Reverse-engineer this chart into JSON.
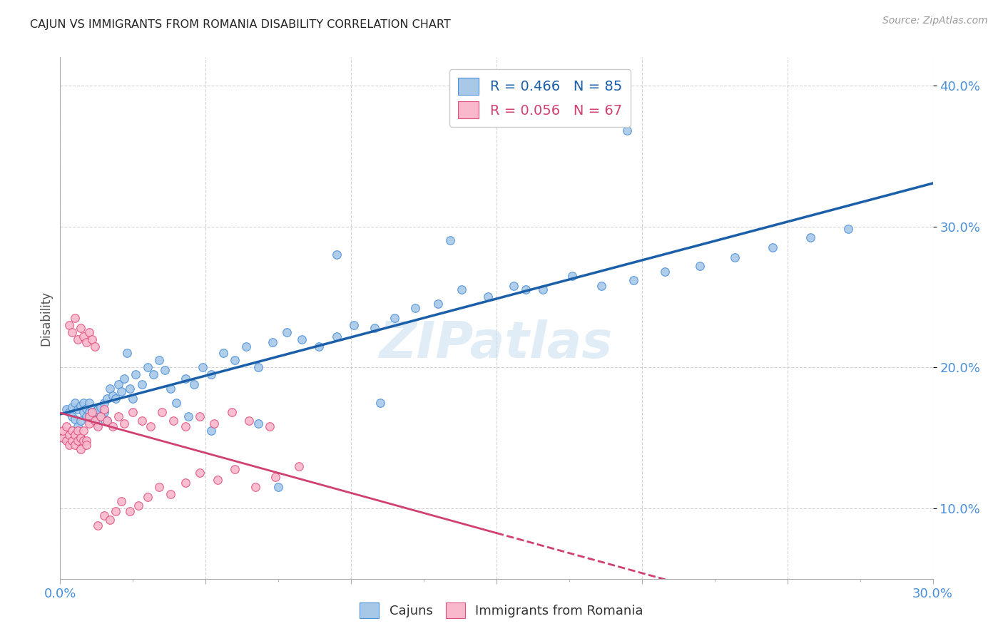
{
  "title": "CAJUN VS IMMIGRANTS FROM ROMANIA DISABILITY CORRELATION CHART",
  "source": "Source: ZipAtlas.com",
  "ylabel": "Disability",
  "xlim": [
    0.0,
    0.3
  ],
  "ylim": [
    0.05,
    0.42
  ],
  "y_ticks": [
    0.1,
    0.2,
    0.3,
    0.4
  ],
  "y_tick_labels": [
    "10.0%",
    "20.0%",
    "30.0%",
    "40.0%"
  ],
  "x_ticks": [
    0.0,
    0.05,
    0.1,
    0.15,
    0.2,
    0.25,
    0.3
  ],
  "x_tick_labels": [
    "0.0%",
    "",
    "",
    "",
    "",
    "",
    "30.0%"
  ],
  "background_color": "#ffffff",
  "grid_color": "#c8c8c8",
  "cajun_fill_color": "#a8c8e8",
  "cajun_edge_color": "#4a90d9",
  "romania_fill_color": "#f9b8cc",
  "romania_edge_color": "#e05080",
  "cajun_line_color": "#1a5fa8",
  "romania_line_color": "#d04070",
  "cajun_R": 0.466,
  "cajun_N": 85,
  "romania_R": 0.056,
  "romania_N": 67,
  "legend_label_cajun": "Cajuns",
  "legend_label_romania": "Immigrants from Romania",
  "watermark": "ZIPatlas",
  "cajun_x": [
    0.002,
    0.003,
    0.004,
    0.004,
    0.005,
    0.005,
    0.006,
    0.006,
    0.007,
    0.007,
    0.008,
    0.008,
    0.009,
    0.009,
    0.01,
    0.01,
    0.011,
    0.011,
    0.012,
    0.012,
    0.013,
    0.013,
    0.014,
    0.014,
    0.015,
    0.015,
    0.016,
    0.016,
    0.017,
    0.018,
    0.019,
    0.02,
    0.021,
    0.022,
    0.023,
    0.024,
    0.025,
    0.026,
    0.028,
    0.03,
    0.032,
    0.034,
    0.036,
    0.038,
    0.04,
    0.043,
    0.046,
    0.049,
    0.052,
    0.056,
    0.06,
    0.064,
    0.068,
    0.073,
    0.078,
    0.083,
    0.089,
    0.095,
    0.101,
    0.108,
    0.115,
    0.122,
    0.13,
    0.138,
    0.147,
    0.156,
    0.166,
    0.176,
    0.186,
    0.197,
    0.208,
    0.22,
    0.232,
    0.245,
    0.258,
    0.271,
    0.134,
    0.095,
    0.16,
    0.044,
    0.052,
    0.068,
    0.075,
    0.11,
    0.195
  ],
  "cajun_y": [
    0.17,
    0.168,
    0.172,
    0.165,
    0.175,
    0.163,
    0.17,
    0.158,
    0.173,
    0.162,
    0.168,
    0.175,
    0.165,
    0.171,
    0.168,
    0.175,
    0.163,
    0.17,
    0.165,
    0.168,
    0.17,
    0.16,
    0.165,
    0.172,
    0.168,
    0.175,
    0.162,
    0.178,
    0.185,
    0.18,
    0.178,
    0.188,
    0.183,
    0.192,
    0.21,
    0.185,
    0.178,
    0.195,
    0.188,
    0.2,
    0.195,
    0.205,
    0.198,
    0.185,
    0.175,
    0.192,
    0.188,
    0.2,
    0.195,
    0.21,
    0.205,
    0.215,
    0.2,
    0.218,
    0.225,
    0.22,
    0.215,
    0.222,
    0.23,
    0.228,
    0.235,
    0.242,
    0.245,
    0.255,
    0.25,
    0.258,
    0.255,
    0.265,
    0.258,
    0.262,
    0.268,
    0.272,
    0.278,
    0.285,
    0.292,
    0.298,
    0.29,
    0.28,
    0.255,
    0.165,
    0.155,
    0.16,
    0.115,
    0.175,
    0.368
  ],
  "romania_x": [
    0.001,
    0.001,
    0.002,
    0.002,
    0.003,
    0.003,
    0.004,
    0.004,
    0.005,
    0.005,
    0.006,
    0.006,
    0.007,
    0.007,
    0.008,
    0.008,
    0.009,
    0.009,
    0.01,
    0.01,
    0.011,
    0.012,
    0.013,
    0.014,
    0.015,
    0.016,
    0.018,
    0.02,
    0.022,
    0.025,
    0.028,
    0.031,
    0.035,
    0.039,
    0.043,
    0.048,
    0.053,
    0.059,
    0.065,
    0.072,
    0.003,
    0.004,
    0.005,
    0.006,
    0.007,
    0.008,
    0.009,
    0.01,
    0.011,
    0.012,
    0.013,
    0.015,
    0.017,
    0.019,
    0.021,
    0.024,
    0.027,
    0.03,
    0.034,
    0.038,
    0.043,
    0.048,
    0.054,
    0.06,
    0.067,
    0.074,
    0.082
  ],
  "romania_y": [
    0.15,
    0.155,
    0.148,
    0.158,
    0.145,
    0.152,
    0.148,
    0.155,
    0.152,
    0.145,
    0.148,
    0.155,
    0.142,
    0.15,
    0.148,
    0.155,
    0.148,
    0.145,
    0.165,
    0.16,
    0.168,
    0.162,
    0.158,
    0.165,
    0.17,
    0.162,
    0.158,
    0.165,
    0.16,
    0.168,
    0.162,
    0.158,
    0.168,
    0.162,
    0.158,
    0.165,
    0.16,
    0.168,
    0.162,
    0.158,
    0.23,
    0.225,
    0.235,
    0.22,
    0.228,
    0.222,
    0.218,
    0.225,
    0.22,
    0.215,
    0.088,
    0.095,
    0.092,
    0.098,
    0.105,
    0.098,
    0.102,
    0.108,
    0.115,
    0.11,
    0.118,
    0.125,
    0.12,
    0.128,
    0.115,
    0.122,
    0.13
  ],
  "romania_line_xmax": 0.15
}
